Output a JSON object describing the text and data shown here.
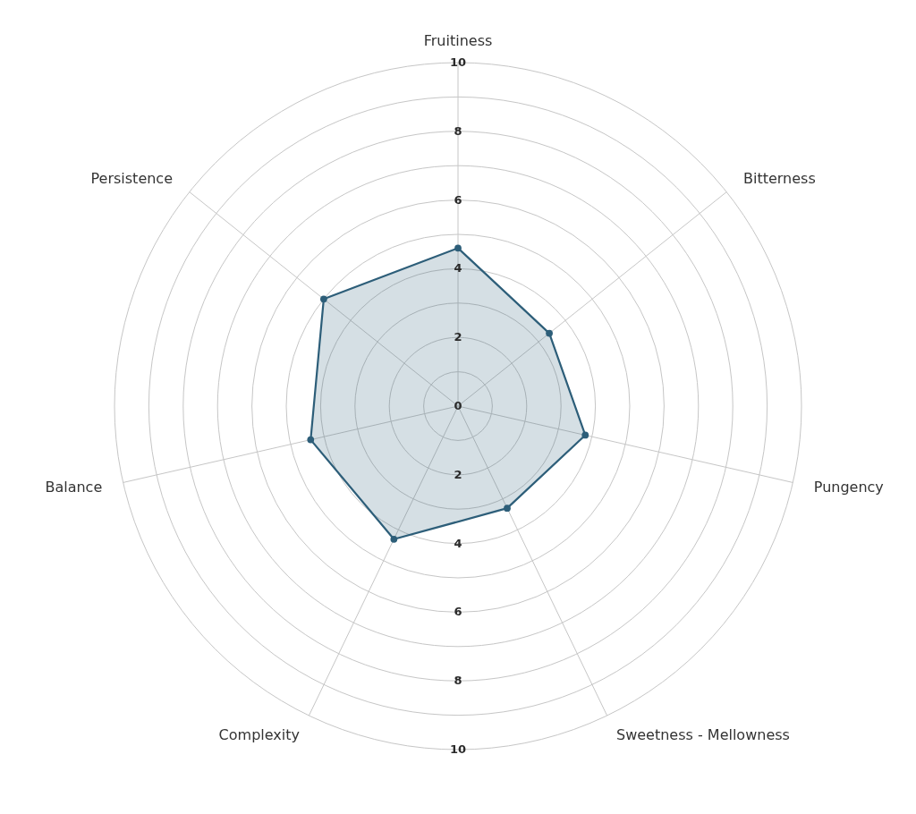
{
  "chart_data": {
    "type": "radar",
    "categories": [
      "Fruitiness",
      "Bitterness",
      "Pungency",
      "Sweetness - Mellowness",
      "Complexity",
      "Balance",
      "Persistence"
    ],
    "series": [
      {
        "color": "#2d5e79",
        "values": [
          4.6,
          3.4,
          3.8,
          3.3,
          4.3,
          4.4,
          5.0
        ]
      }
    ],
    "ylim": [
      0,
      10
    ],
    "yticks": [
      0,
      2,
      4,
      6,
      8,
      10
    ],
    "annotations": [
      "2",
      "4",
      "6",
      "8",
      "10"
    ],
    "grid": true,
    "marker": "circle",
    "line_style": "solid"
  }
}
